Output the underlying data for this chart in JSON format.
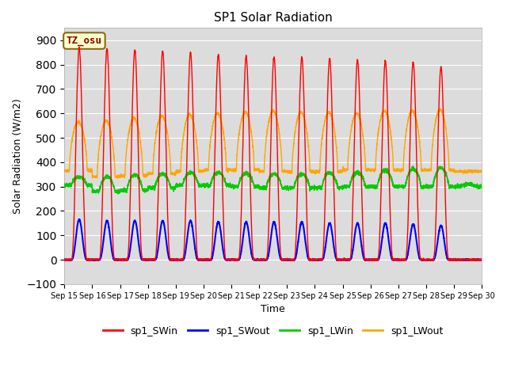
{
  "title": "SP1 Solar Radiation",
  "xlabel": "Time",
  "ylabel": "Solar Radiation (W/m2)",
  "ylim": [
    -100,
    950
  ],
  "yticks": [
    -100,
    0,
    100,
    200,
    300,
    400,
    500,
    600,
    700,
    800,
    900
  ],
  "bg_color": "#dcdcdc",
  "annotation_text": "TZ_osu",
  "annotation_color": "#8b0000",
  "annotation_bg": "#ffffcc",
  "series": {
    "sp1_SWin": {
      "color": "#ff0000",
      "lw": 1.0
    },
    "sp1_SWout": {
      "color": "#0000ff",
      "lw": 1.5
    },
    "sp1_LWin": {
      "color": "#00cc00",
      "lw": 1.0
    },
    "sp1_LWout": {
      "color": "#ffa500",
      "lw": 1.0
    }
  },
  "n_days": 15,
  "start_day": 15,
  "SWin_peaks": [
    870,
    865,
    860,
    855,
    850,
    840,
    835,
    830,
    830,
    825,
    820,
    815,
    810,
    790,
    0
  ],
  "SWout_peaks": [
    165,
    160,
    160,
    160,
    160,
    155,
    155,
    155,
    155,
    150,
    150,
    150,
    145,
    140,
    0
  ],
  "LWin_base": [
    305,
    280,
    285,
    295,
    305,
    305,
    300,
    295,
    295,
    295,
    300,
    300,
    300,
    300,
    300
  ],
  "LWin_day": [
    340,
    340,
    348,
    352,
    358,
    358,
    355,
    352,
    352,
    358,
    358,
    368,
    372,
    378,
    310
  ],
  "LWout_night": [
    365,
    340,
    345,
    352,
    362,
    368,
    368,
    362,
    362,
    362,
    368,
    368,
    368,
    368,
    362
  ],
  "LWout_peaks": [
    565,
    570,
    580,
    590,
    595,
    600,
    605,
    610,
    605,
    605,
    600,
    610,
    610,
    615,
    0
  ]
}
